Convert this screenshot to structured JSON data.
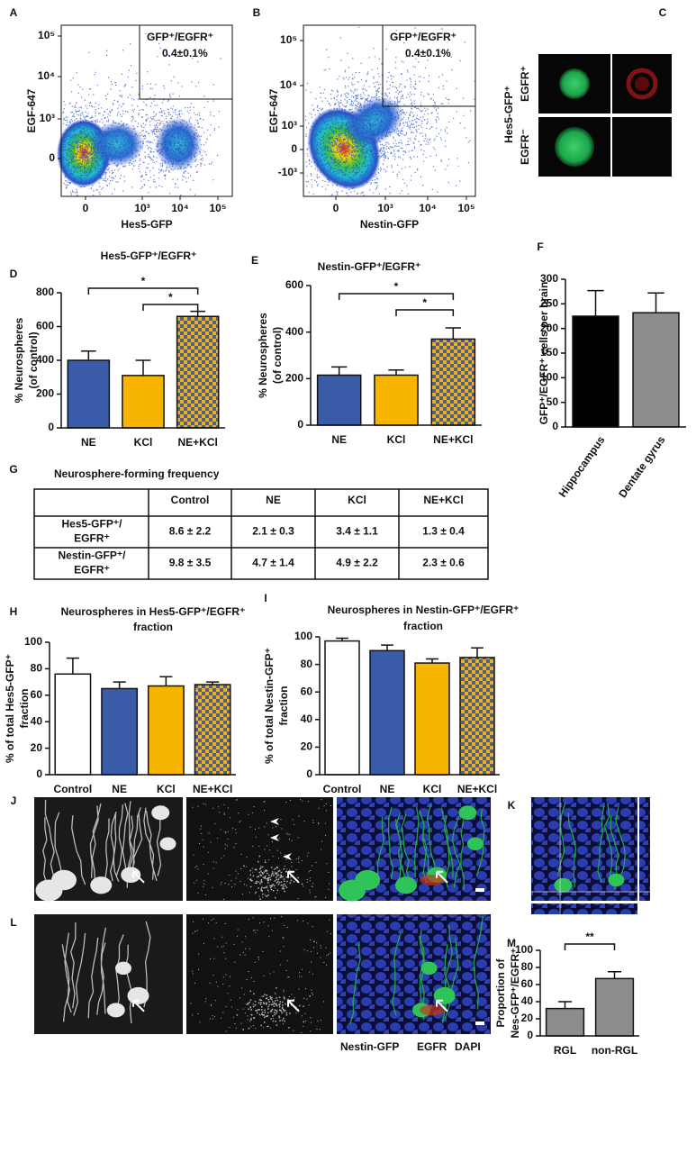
{
  "flow_plots": [
    {
      "panel": "A",
      "gate_label": "GFP⁺/EGFR⁺",
      "percentage": "0.4±0.1%",
      "x_label": "Hes5-GFP",
      "y_label": "EGF-647",
      "x_tick_labels": [
        "0",
        "10³",
        "10⁴",
        "10⁵"
      ],
      "y_tick_labels": [
        "10⁵",
        "10⁴",
        "10³",
        "0"
      ]
    },
    {
      "panel": "B",
      "gate_label": "GFP⁺/EGFR⁺",
      "percentage": "0.4±0.1%",
      "x_label": "Nestin-GFP",
      "y_label": "EGF-647",
      "x_tick_labels": [
        "0",
        "10³",
        "10⁴",
        "10⁵"
      ],
      "y_tick_labels": [
        "10⁵",
        "10⁴",
        "10³",
        "0",
        "-10³"
      ]
    }
  ],
  "image_panel": {
    "panel": "C",
    "group_label": "Hes5-GFP⁺",
    "row_labels": [
      "EGFR⁺",
      "EGFR⁻"
    ]
  },
  "chart_data": [
    {
      "type": "bar",
      "panel": "D",
      "title": [
        "Hes5-GFP⁺/EGFR⁺"
      ],
      "y_label": [
        "% Neurospheres",
        "(of control)"
      ],
      "categories": [
        "NE",
        "KCl",
        "NE+KCl"
      ],
      "values": [
        400,
        310,
        660
      ],
      "errors": [
        55,
        90,
        30
      ],
      "colors": [
        "#3a5ba8",
        "#f7b500",
        "checker"
      ],
      "ylim": [
        0,
        800
      ],
      "yticks": [
        0,
        200,
        400,
        600,
        800
      ],
      "significance": [
        {
          "label": "*",
          "between": [
            "NE",
            "NE+KCl"
          ]
        },
        {
          "label": "*",
          "between": [
            "KCl",
            "NE+KCl"
          ]
        }
      ]
    },
    {
      "type": "bar",
      "panel": "E",
      "title": [
        "Nestin-GFP⁺/EGFR⁺"
      ],
      "y_label": [
        "% Neurospheres",
        "(of control)"
      ],
      "categories": [
        "NE",
        "KCl",
        "NE+KCl"
      ],
      "values": [
        215,
        215,
        370
      ],
      "errors": [
        35,
        22,
        48
      ],
      "colors": [
        "#3a5ba8",
        "#f7b500",
        "checker"
      ],
      "ylim": [
        0,
        600
      ],
      "yticks": [
        0,
        200,
        400,
        600
      ],
      "significance": [
        {
          "label": "*",
          "between": [
            "NE",
            "NE+KCl"
          ]
        },
        {
          "label": "*",
          "between": [
            "KCl",
            "NE+KCl"
          ]
        }
      ]
    },
    {
      "type": "bar",
      "panel": "F",
      "title": [],
      "y_label": [
        "GFP⁺/EGFR⁺ cells per brain"
      ],
      "categories": [
        "Hippocampus",
        "Dentate gyrus"
      ],
      "values": [
        225,
        232
      ],
      "errors": [
        52,
        40
      ],
      "colors": [
        "#000000",
        "#8c8c8c"
      ],
      "ylim": [
        0,
        300
      ],
      "yticks": [
        0,
        50,
        100,
        150,
        200,
        250,
        300
      ],
      "significance": []
    },
    {
      "type": "bar",
      "panel": "H",
      "title": [
        "Neurospheres in Hes5-GFP⁺/EGFR⁺",
        "fraction"
      ],
      "y_label": [
        "% of total Hes5-GFP⁺",
        "fraction"
      ],
      "categories": [
        "Control",
        "NE",
        "KCl",
        "NE+KCl"
      ],
      "values": [
        76,
        65,
        67,
        68
      ],
      "errors": [
        12,
        5,
        7,
        2
      ],
      "colors": [
        "#ffffff",
        "#3a5ba8",
        "#f7b500",
        "checker"
      ],
      "ylim": [
        0,
        100
      ],
      "yticks": [
        0,
        20,
        40,
        60,
        80,
        100
      ],
      "significance": []
    },
    {
      "type": "bar",
      "panel": "I",
      "title": [
        "Neurospheres in Nestin-GFP⁺/EGFR⁺",
        "fraction"
      ],
      "y_label": [
        "% of total Nestin-GFP⁺",
        "fraction"
      ],
      "categories": [
        "Control",
        "NE",
        "KCl",
        "NE+KCl"
      ],
      "values": [
        97,
        90,
        81,
        85
      ],
      "errors": [
        2,
        4,
        3,
        7
      ],
      "colors": [
        "#ffffff",
        "#3a5ba8",
        "#f7b500",
        "checker"
      ],
      "ylim": [
        0,
        100
      ],
      "yticks": [
        0,
        20,
        40,
        60,
        80,
        100
      ],
      "significance": []
    },
    {
      "type": "bar",
      "panel": "M",
      "title": [],
      "y_label": [
        "Proportion of",
        "Nes-GFP⁺/EGFR⁺"
      ],
      "categories": [
        "RGL",
        "non-RGL"
      ],
      "values": [
        32,
        67
      ],
      "errors": [
        8,
        8
      ],
      "colors": [
        "#8c8c8c",
        "#8c8c8c"
      ],
      "ylim": [
        0,
        100
      ],
      "yticks": [
        0,
        20,
        40,
        60,
        80,
        100
      ],
      "significance": [
        {
          "label": "**",
          "between": [
            "RGL",
            "non-RGL"
          ]
        }
      ]
    }
  ],
  "table": {
    "panel": "G",
    "title": "Neurosphere-forming frequency",
    "columns": [
      "Control",
      "NE",
      "KCl",
      "NE+KCl"
    ],
    "rows": [
      {
        "label": [
          "Hes5-GFP⁺/",
          "EGFR⁺"
        ],
        "cells": [
          "8.6 ± 2.2",
          "2.1 ± 0.3",
          "3.4 ± 1.1",
          "1.3 ± 0.4"
        ]
      },
      {
        "label": [
          "Nestin-GFP⁺/",
          "EGFR⁺"
        ],
        "cells": [
          "9.8 ± 3.5",
          "4.7 ± 1.4",
          "4.9 ± 2.2",
          "2.3 ± 0.6"
        ]
      }
    ]
  },
  "micrographs": {
    "panels": [
      "J",
      "K",
      "L"
    ],
    "legend": [
      {
        "text": "Nestin-GFP",
        "color": "#1fa84a"
      },
      {
        "text": "EGFR",
        "color": "#e0201b"
      },
      {
        "text": "DAPI",
        "color": "#1f2fb0"
      }
    ]
  }
}
